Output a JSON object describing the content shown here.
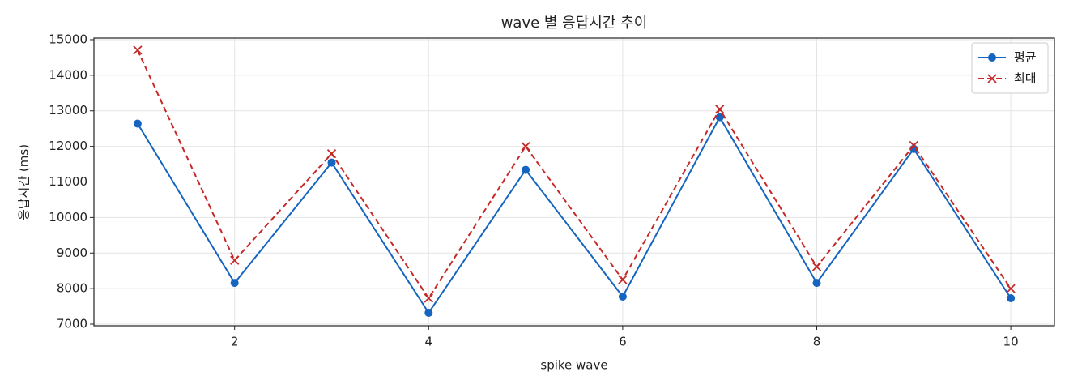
{
  "chart_data": {
    "type": "line",
    "title": "wave 별 응답시간 추이",
    "x_label": "spike wave",
    "y_label": "응답시간 (ms)",
    "x": [
      1,
      2,
      3,
      4,
      5,
      6,
      7,
      8,
      9,
      10
    ],
    "series": [
      {
        "name": "평균",
        "color": "#1565c0",
        "marker": "o",
        "linestyle": "solid",
        "values": [
          12640,
          8160,
          11545,
          7320,
          11340,
          7775,
          12820,
          8160,
          11930,
          7730
        ]
      },
      {
        "name": "최대",
        "color": "#c62828",
        "marker": "x",
        "linestyle": "dashed",
        "values": [
          14705,
          8795,
          11795,
          7730,
          12000,
          8250,
          13045,
          8615,
          12025,
          8000
        ]
      }
    ],
    "xlim": [
      0.55,
      10.45
    ],
    "xticks": [
      2,
      4,
      6,
      8,
      10
    ],
    "ylim": [
      6955,
      15045
    ],
    "yticks": [
      7000,
      8000,
      9000,
      10000,
      11000,
      12000,
      13000,
      14000,
      15000
    ],
    "grid": true,
    "legend": "upper right"
  }
}
